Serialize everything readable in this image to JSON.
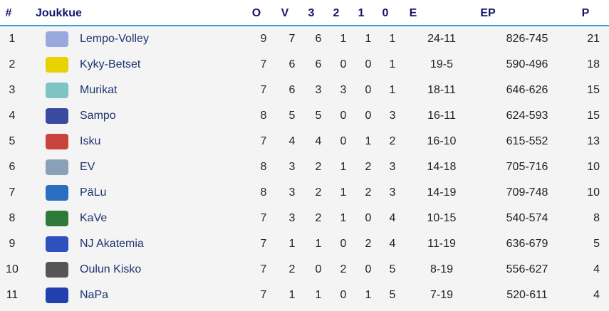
{
  "headers": {
    "rank": "#",
    "team": "Joukkue",
    "o": "O",
    "v": "V",
    "w3": "3",
    "w2": "2",
    "l1": "1",
    "l0": "0",
    "e": "E",
    "ep": "EP",
    "p": "P"
  },
  "rows": [
    {
      "rank": "1",
      "team": "Lempo-Volley",
      "o": "9",
      "v": "7",
      "w3": "6",
      "w2": "1",
      "l1": "1",
      "l0": "1",
      "e": "24-11",
      "ep": "826-745",
      "p": "21",
      "logo_color": "#9aa8e0"
    },
    {
      "rank": "2",
      "team": "Kyky-Betset",
      "o": "7",
      "v": "6",
      "w3": "6",
      "w2": "0",
      "l1": "0",
      "l0": "1",
      "e": "19-5",
      "ep": "590-496",
      "p": "18",
      "logo_color": "#e8d200"
    },
    {
      "rank": "3",
      "team": "Murikat",
      "o": "7",
      "v": "6",
      "w3": "3",
      "w2": "3",
      "l1": "0",
      "l0": "1",
      "e": "18-11",
      "ep": "646-626",
      "p": "15",
      "logo_color": "#7fc4c4"
    },
    {
      "rank": "4",
      "team": "Sampo",
      "o": "8",
      "v": "5",
      "w3": "5",
      "w2": "0",
      "l1": "0",
      "l0": "3",
      "e": "16-11",
      "ep": "624-593",
      "p": "15",
      "logo_color": "#3a4aa0"
    },
    {
      "rank": "5",
      "team": "Isku",
      "o": "7",
      "v": "4",
      "w3": "4",
      "w2": "0",
      "l1": "1",
      "l0": "2",
      "e": "16-10",
      "ep": "615-552",
      "p": "13",
      "logo_color": "#c8443c"
    },
    {
      "rank": "6",
      "team": "EV",
      "o": "8",
      "v": "3",
      "w3": "2",
      "w2": "1",
      "l1": "2",
      "l0": "3",
      "e": "14-18",
      "ep": "705-716",
      "p": "10",
      "logo_color": "#8aa0b8"
    },
    {
      "rank": "7",
      "team": "PäLu",
      "o": "8",
      "v": "3",
      "w3": "2",
      "w2": "1",
      "l1": "2",
      "l0": "3",
      "e": "14-19",
      "ep": "709-748",
      "p": "10",
      "logo_color": "#2a6fc0"
    },
    {
      "rank": "8",
      "team": "KaVe",
      "o": "7",
      "v": "3",
      "w3": "2",
      "w2": "1",
      "l1": "0",
      "l0": "4",
      "e": "10-15",
      "ep": "540-574",
      "p": "8",
      "logo_color": "#2e7a3a"
    },
    {
      "rank": "9",
      "team": "NJ Akatemia",
      "o": "7",
      "v": "1",
      "w3": "1",
      "w2": "0",
      "l1": "2",
      "l0": "4",
      "e": "11-19",
      "ep": "636-679",
      "p": "5",
      "logo_color": "#3050c0"
    },
    {
      "rank": "10",
      "team": "Oulun Kisko",
      "o": "7",
      "v": "2",
      "w3": "0",
      "w2": "2",
      "l1": "0",
      "l0": "5",
      "e": "8-19",
      "ep": "556-627",
      "p": "4",
      "logo_color": "#555555"
    },
    {
      "rank": "11",
      "team": "NaPa",
      "o": "7",
      "v": "1",
      "w3": "1",
      "w2": "0",
      "l1": "1",
      "l0": "5",
      "e": "7-19",
      "ep": "520-611",
      "p": "4",
      "logo_color": "#2040b0"
    }
  ]
}
